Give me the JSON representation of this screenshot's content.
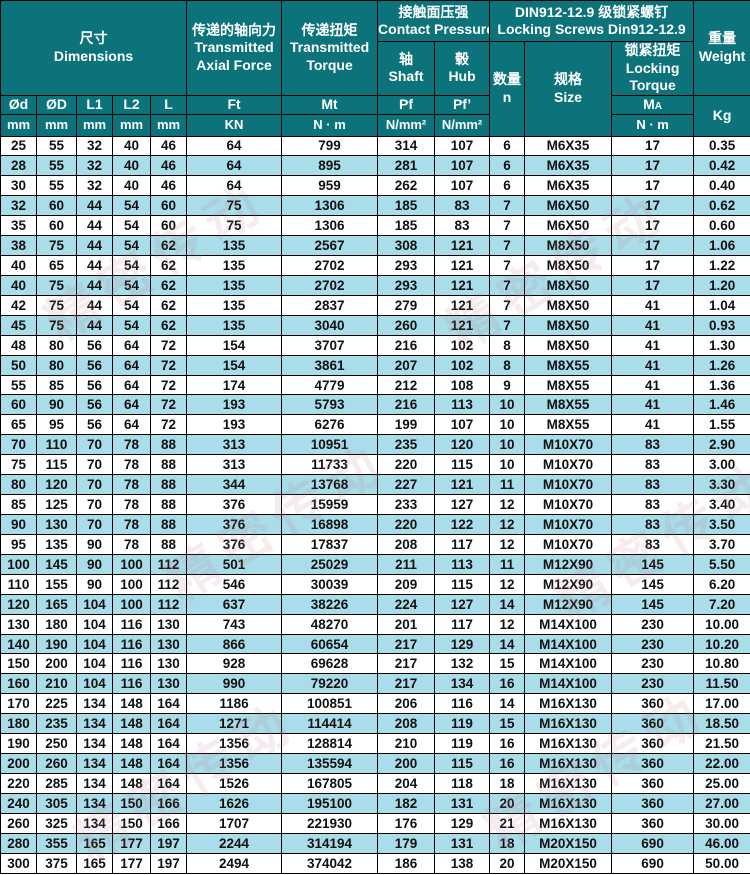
{
  "watermark": {
    "text": "精密传动"
  },
  "colors": {
    "header_bg": "#0c737a",
    "header_text": "#ffffff",
    "row_alt": "#a9dde9",
    "row_base": "#ffffff",
    "border": "#000000"
  },
  "header": {
    "groups": {
      "dimensions_zh": "尺寸",
      "dimensions_en": "Dimensions",
      "axial_zh": "传递的轴向力",
      "axial_en1": "Transmitted",
      "axial_en2": "Axial Force",
      "torque_zh": "传递扭矩",
      "torque_en1": "Transmitted",
      "torque_en2": "Torque",
      "pressure_zh": "接触面压强",
      "pressure_en": "Contact Pressure",
      "screws_zh": "DIN912-12.9 级锁紧螺钉",
      "screws_en": "Locking Screws Din912-12.9",
      "weight_zh": "重量",
      "weight_en": "Weight"
    },
    "sub": {
      "shaft_zh": "轴",
      "shaft_en": "Shaft",
      "hub_zh": "毂",
      "hub_en": "Hub",
      "qty_zh": "数量",
      "qty_sym": "n",
      "size_zh": "规格",
      "size_en": "Size",
      "locktorque_zh": "锁紧扭矩",
      "locktorque_en1": "Locking",
      "locktorque_en2": "Torque"
    },
    "symbols": {
      "d": "Ød",
      "D": "ØD",
      "L1": "L1",
      "L2": "L2",
      "L": "L",
      "Ft": "Ft",
      "Mt": "Mt",
      "Pf": "Pf",
      "Pfp": "Pf’",
      "MA_main": "M",
      "MA_sub": "A"
    },
    "units": {
      "mm": "mm",
      "KN": "KN",
      "Nm": "N · m",
      "Nmm2": "N/mm²",
      "Kg": "Kg"
    }
  },
  "table": {
    "rows": [
      [
        25,
        55,
        32,
        40,
        46,
        64,
        799,
        314,
        107,
        6,
        "M6X35",
        17,
        "0.35"
      ],
      [
        28,
        55,
        32,
        40,
        46,
        64,
        895,
        281,
        107,
        6,
        "M6X35",
        17,
        "0.42"
      ],
      [
        30,
        55,
        32,
        40,
        46,
        64,
        959,
        262,
        107,
        6,
        "M6X35",
        17,
        "0.40"
      ],
      [
        32,
        60,
        44,
        54,
        60,
        75,
        1306,
        185,
        83,
        7,
        "M6X50",
        17,
        "0.62"
      ],
      [
        35,
        60,
        44,
        54,
        60,
        75,
        1306,
        185,
        83,
        7,
        "M6X50",
        17,
        "0.60"
      ],
      [
        38,
        75,
        44,
        54,
        62,
        135,
        2567,
        308,
        121,
        7,
        "M8X50",
        17,
        "1.06"
      ],
      [
        40,
        65,
        44,
        54,
        62,
        135,
        2702,
        293,
        121,
        7,
        "M8X50",
        17,
        "1.22"
      ],
      [
        40,
        75,
        44,
        54,
        62,
        135,
        2702,
        293,
        121,
        7,
        "M8X50",
        17,
        "1.20"
      ],
      [
        42,
        75,
        44,
        54,
        62,
        135,
        2837,
        279,
        121,
        7,
        "M8X50",
        41,
        "1.04"
      ],
      [
        45,
        75,
        44,
        54,
        62,
        135,
        3040,
        260,
        121,
        7,
        "M8X50",
        41,
        "0.93"
      ],
      [
        48,
        80,
        56,
        64,
        72,
        154,
        3707,
        216,
        102,
        8,
        "M8X50",
        41,
        "1.30"
      ],
      [
        50,
        80,
        56,
        64,
        72,
        154,
        3861,
        207,
        102,
        8,
        "M8X55",
        41,
        "1.26"
      ],
      [
        55,
        85,
        56,
        64,
        72,
        174,
        4779,
        212,
        108,
        9,
        "M8X55",
        41,
        "1.36"
      ],
      [
        60,
        90,
        56,
        64,
        72,
        193,
        5793,
        216,
        113,
        10,
        "M8X55",
        41,
        "1.46"
      ],
      [
        65,
        95,
        56,
        64,
        72,
        193,
        6276,
        199,
        107,
        10,
        "M8X55",
        41,
        "1.55"
      ],
      [
        70,
        110,
        70,
        78,
        88,
        313,
        10951,
        235,
        120,
        10,
        "M10X70",
        83,
        "2.90"
      ],
      [
        75,
        115,
        70,
        78,
        88,
        313,
        11733,
        220,
        115,
        10,
        "M10X70",
        83,
        "3.00"
      ],
      [
        80,
        120,
        70,
        78,
        88,
        344,
        13768,
        227,
        121,
        11,
        "M10X70",
        83,
        "3.30"
      ],
      [
        85,
        125,
        70,
        78,
        88,
        376,
        15959,
        233,
        127,
        12,
        "M10X70",
        83,
        "3.40"
      ],
      [
        90,
        130,
        70,
        78,
        88,
        376,
        16898,
        220,
        122,
        12,
        "M10X70",
        83,
        "3.50"
      ],
      [
        95,
        135,
        90,
        78,
        88,
        376,
        17837,
        208,
        117,
        12,
        "M10X70",
        83,
        "3.70"
      ],
      [
        100,
        145,
        90,
        100,
        112,
        501,
        25029,
        211,
        113,
        11,
        "M12X90",
        145,
        "5.50"
      ],
      [
        110,
        155,
        90,
        100,
        112,
        546,
        30039,
        209,
        115,
        12,
        "M12X90",
        145,
        "6.20"
      ],
      [
        120,
        165,
        104,
        100,
        112,
        637,
        38226,
        224,
        127,
        14,
        "M12X90",
        145,
        "7.20"
      ],
      [
        130,
        180,
        104,
        116,
        130,
        743,
        48270,
        201,
        117,
        12,
        "M14X100",
        230,
        "10.00"
      ],
      [
        140,
        190,
        104,
        116,
        130,
        866,
        60654,
        217,
        129,
        14,
        "M14X100",
        230,
        "10.20"
      ],
      [
        150,
        200,
        104,
        116,
        130,
        928,
        69628,
        217,
        132,
        15,
        "M14X100",
        230,
        "10.80"
      ],
      [
        160,
        210,
        104,
        116,
        130,
        990,
        79220,
        217,
        134,
        16,
        "M14X100",
        230,
        "11.50"
      ],
      [
        170,
        225,
        134,
        148,
        164,
        1186,
        100851,
        206,
        116,
        14,
        "M16X130",
        360,
        "17.00"
      ],
      [
        180,
        235,
        134,
        148,
        164,
        1271,
        114414,
        208,
        119,
        15,
        "M16X130",
        360,
        "18.50"
      ],
      [
        190,
        250,
        134,
        148,
        164,
        1356,
        128814,
        210,
        119,
        16,
        "M16X130",
        360,
        "21.50"
      ],
      [
        200,
        260,
        134,
        148,
        164,
        1356,
        135594,
        200,
        115,
        16,
        "M16X130",
        360,
        "22.00"
      ],
      [
        220,
        285,
        134,
        148,
        164,
        1526,
        167805,
        204,
        118,
        18,
        "M16X130",
        360,
        "25.00"
      ],
      [
        240,
        305,
        134,
        150,
        166,
        1626,
        195100,
        182,
        131,
        20,
        "M16X130",
        360,
        "27.00"
      ],
      [
        260,
        325,
        134,
        150,
        166,
        1707,
        221930,
        176,
        129,
        21,
        "M16X130",
        360,
        "30.00"
      ],
      [
        280,
        355,
        165,
        177,
        197,
        2244,
        314194,
        179,
        131,
        18,
        "M20X150",
        690,
        "46.00"
      ],
      [
        300,
        375,
        165,
        177,
        197,
        2494,
        374042,
        186,
        138,
        20,
        "M20X150",
        690,
        "50.00"
      ]
    ]
  }
}
